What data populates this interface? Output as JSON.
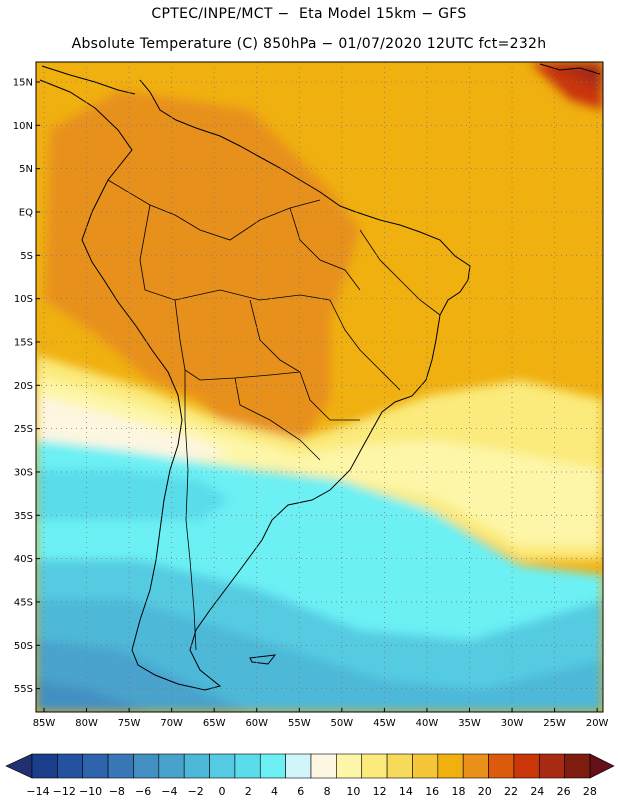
{
  "header": {
    "line1": "CPTEC/INPE/MCT −  Eta Model 15km − GFS",
    "line2": "Absolute Temperature (C) 850hPa − 01/07/2020 12UTC fct=232h"
  },
  "axes": {
    "lat_labels": [
      "15N",
      "10N",
      "5N",
      "EQ",
      "5S",
      "10S",
      "15S",
      "20S",
      "25S",
      "30S",
      "35S",
      "40S",
      "45S",
      "50S",
      "55S"
    ],
    "lon_labels": [
      "85W",
      "80W",
      "75W",
      "70W",
      "65W",
      "60W",
      "55W",
      "50W",
      "45W",
      "40W",
      "35W",
      "30W",
      "25W",
      "20W"
    ]
  },
  "colorbar": {
    "labels": [
      "-14",
      "-12",
      "-10",
      "-8",
      "-6",
      "-4",
      "-2",
      "0",
      "2",
      "4",
      "6",
      "8",
      "10",
      "12",
      "14",
      "16",
      "18",
      "20",
      "22",
      "24",
      "26",
      "28"
    ],
    "colors": [
      "#1a3e8c",
      "#25529e",
      "#2e64ac",
      "#3878b6",
      "#4290c2",
      "#48a3cc",
      "#4eb8d8",
      "#54cbe2",
      "#5adcea",
      "#6cf0f4",
      "#d0f6fa",
      "#fdf6e0",
      "#fdf6a8",
      "#fbea7c",
      "#f8da5a",
      "#f5c638",
      "#f0b010",
      "#e8901a",
      "#dc5a0c",
      "#c8360a",
      "#a82a12",
      "#7e1c10"
    ],
    "under_color": "#203070",
    "over_color": "#64101a"
  }
}
